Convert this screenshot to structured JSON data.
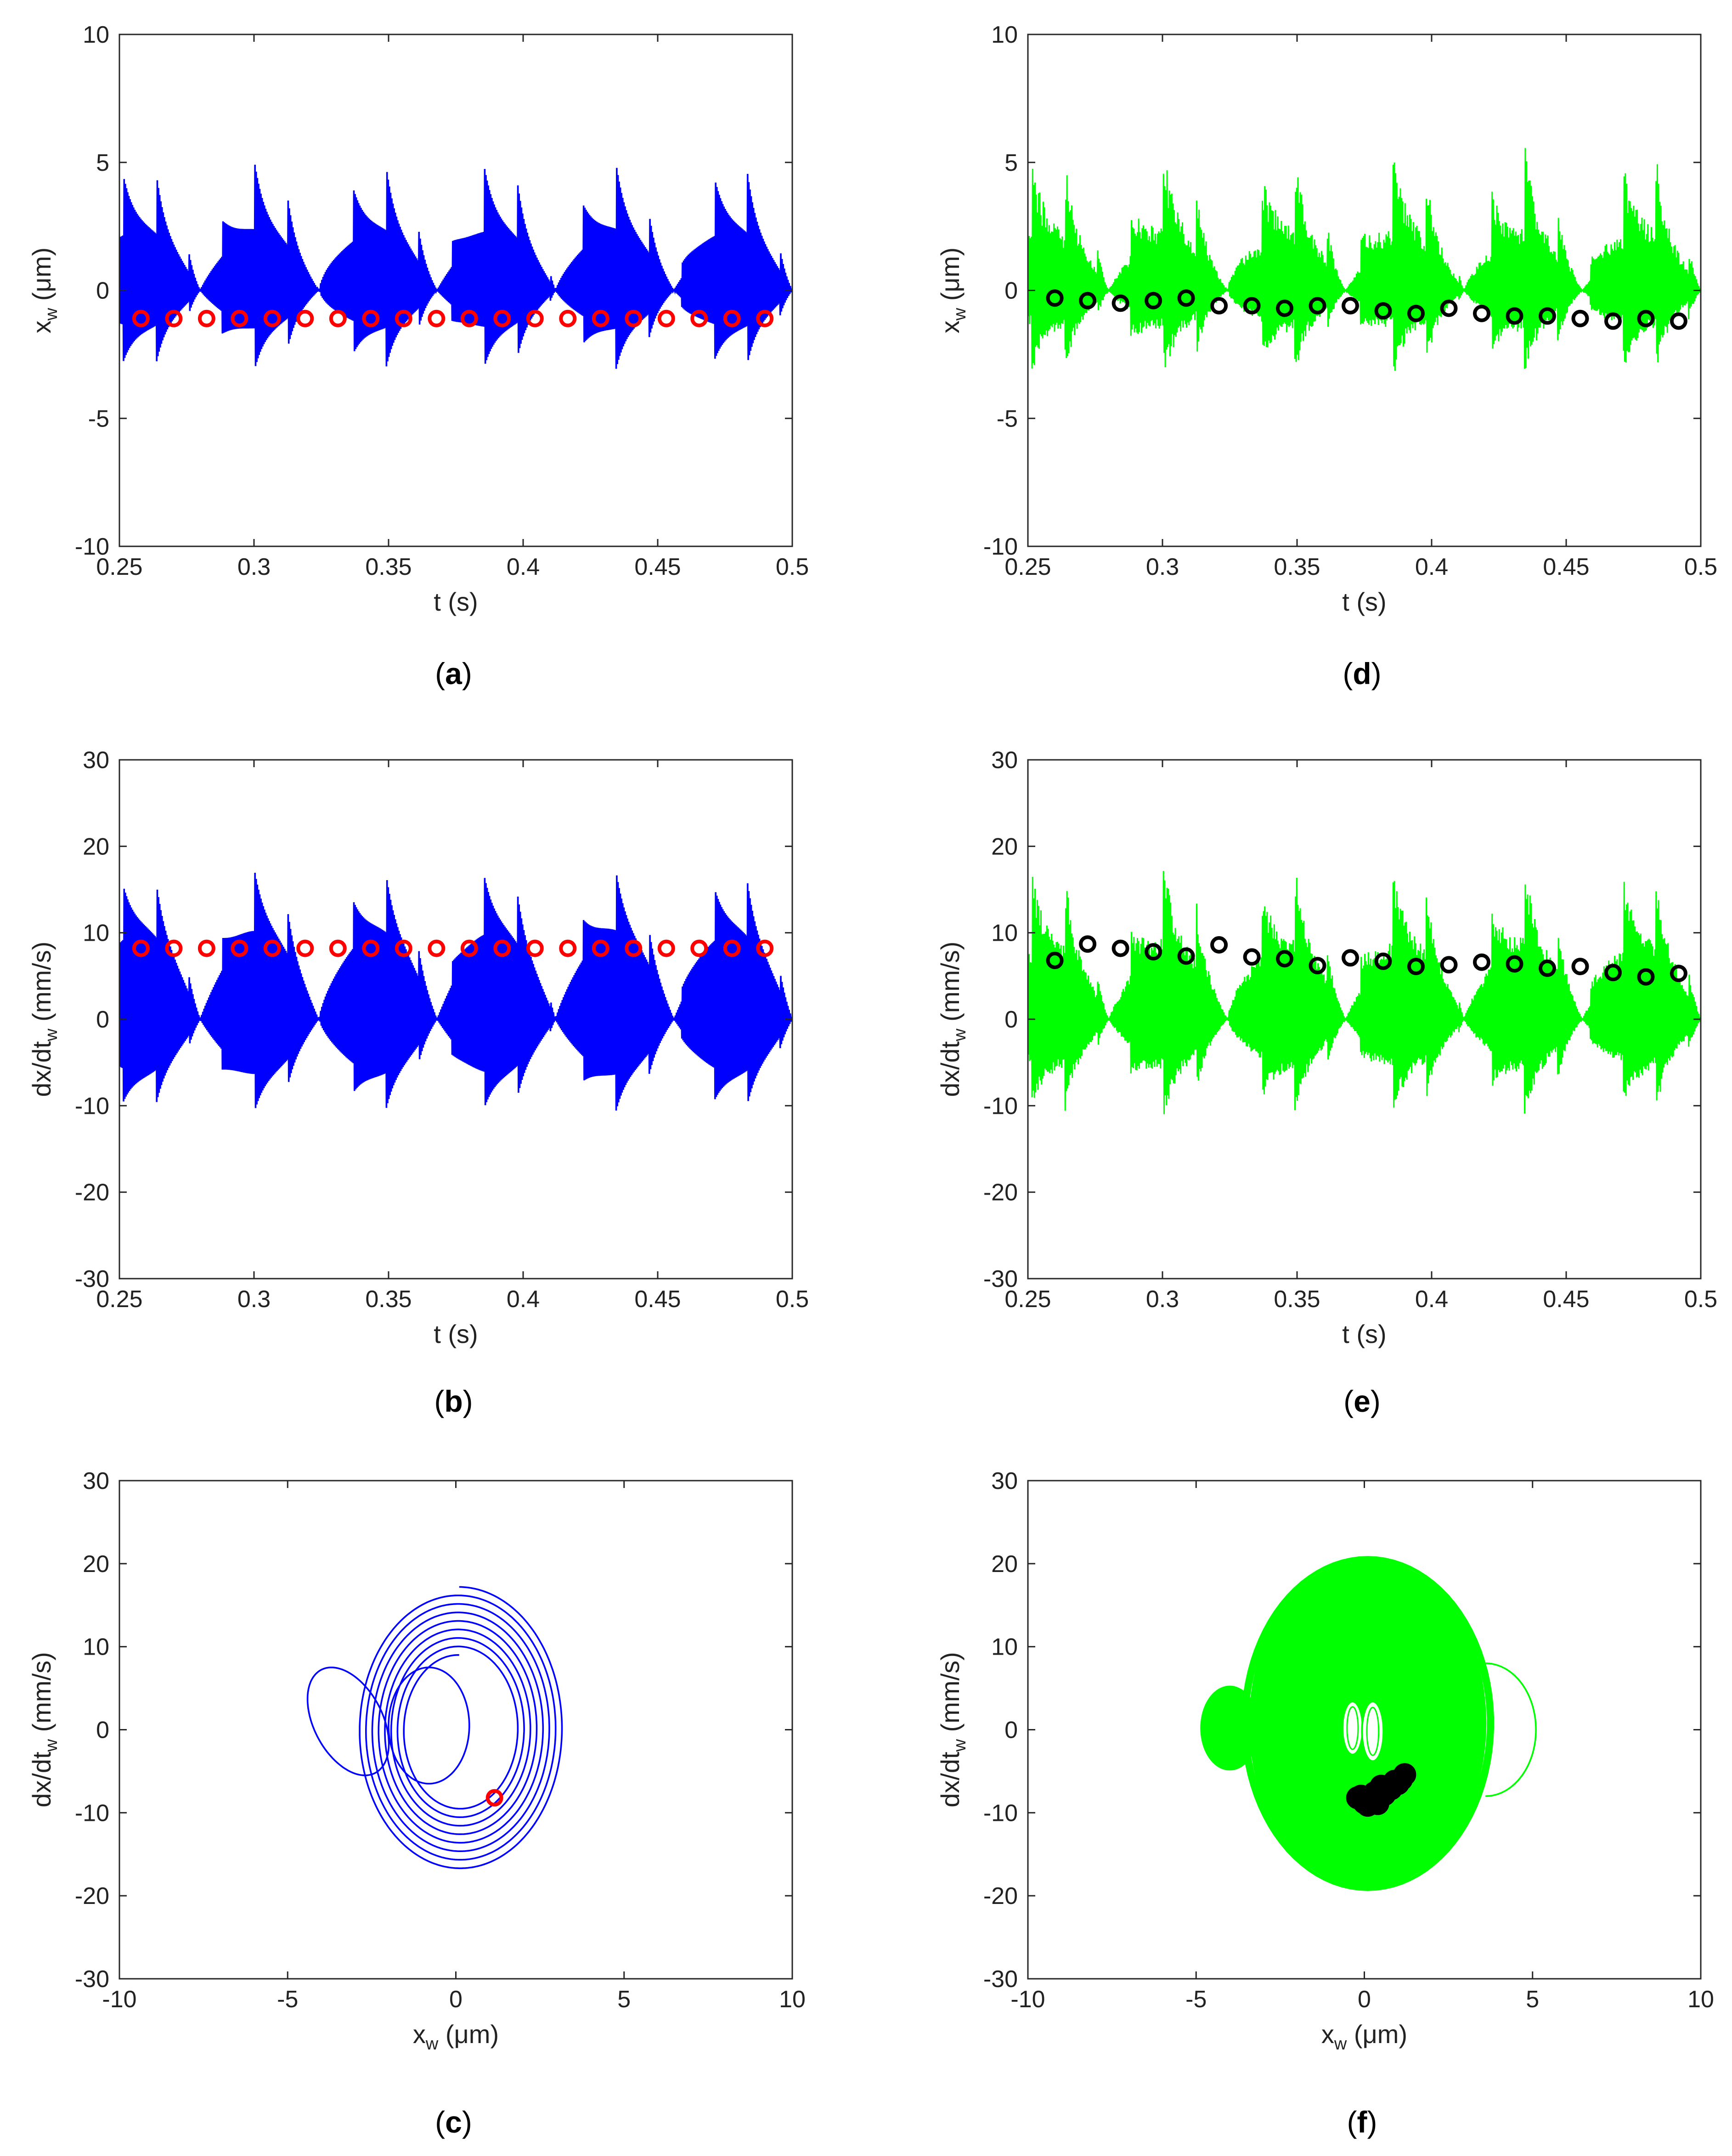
{
  "chart_data": [
    {
      "id": "a",
      "type": "line",
      "caption": "a",
      "xlabel": {
        "main": "t (s)",
        "sub": "",
        "unit": ""
      },
      "ylabel": {
        "main": "x",
        "sub": "w",
        "unit": " (μm)"
      },
      "xlim": [
        0.25,
        0.5
      ],
      "ylim": [
        -10,
        10
      ],
      "xticks": [
        0.25,
        0.3,
        0.35,
        0.4,
        0.45,
        0.5
      ],
      "yticks": [
        -10,
        -5,
        0,
        5,
        10
      ],
      "colors": {
        "line": "#0000ff",
        "marker": "#ff0000"
      },
      "signal": {
        "kind": "bursts",
        "period_s": 0.0122,
        "first_s": 0.2515,
        "amp_peak": 5.0,
        "amp_floor": 2.3,
        "offset": 0,
        "random": 0
      },
      "markers": {
        "x": [
          0.258,
          0.2702,
          0.2824,
          0.2946,
          0.3068,
          0.319,
          0.3312,
          0.3434,
          0.3556,
          0.3678,
          0.38,
          0.3922,
          0.4044,
          0.4166,
          0.4288,
          0.441,
          0.4532,
          0.4654,
          0.4776,
          0.4898
        ],
        "y": [
          -1.1,
          -1.1,
          -1.1,
          -1.1,
          -1.1,
          -1.1,
          -1.1,
          -1.1,
          -1.1,
          -1.1,
          -1.1,
          -1.1,
          -1.1,
          -1.1,
          -1.1,
          -1.1,
          -1.1,
          -1.1,
          -1.1,
          -1.1
        ]
      }
    },
    {
      "id": "b",
      "type": "line",
      "caption": "b",
      "xlabel": {
        "main": "t (s)",
        "sub": "",
        "unit": ""
      },
      "ylabel": {
        "main": "dx/dt",
        "sub": "w",
        "unit": " (mm/s)"
      },
      "xlim": [
        0.25,
        0.5
      ],
      "ylim": [
        -30,
        30
      ],
      "xticks": [
        0.25,
        0.3,
        0.35,
        0.4,
        0.45,
        0.5
      ],
      "yticks": [
        -30,
        -20,
        -10,
        0,
        10,
        20,
        30
      ],
      "colors": {
        "line": "#0000ff",
        "marker": "#ff0000"
      },
      "signal": {
        "kind": "bursts",
        "period_s": 0.0122,
        "first_s": 0.2515,
        "amp_peak": 17.2,
        "amp_floor": 10.0,
        "offset": 0,
        "random": 0
      },
      "markers": {
        "x": [
          0.258,
          0.2702,
          0.2824,
          0.2946,
          0.3068,
          0.319,
          0.3312,
          0.3434,
          0.3556,
          0.3678,
          0.38,
          0.3922,
          0.4044,
          0.4166,
          0.4288,
          0.441,
          0.4532,
          0.4654,
          0.4776,
          0.4898
        ],
        "y": [
          8.2,
          8.2,
          8.2,
          8.2,
          8.2,
          8.2,
          8.2,
          8.2,
          8.2,
          8.2,
          8.2,
          8.2,
          8.2,
          8.2,
          8.2,
          8.2,
          8.2,
          8.2,
          8.2,
          8.2
        ]
      }
    },
    {
      "id": "c",
      "type": "line",
      "caption": "c",
      "xlabel": {
        "main": "x",
        "sub": "w",
        "unit": " (μm)"
      },
      "ylabel": {
        "main": "dx/dt",
        "sub": "w",
        "unit": " (mm/s)"
      },
      "xlim": [
        -10,
        10
      ],
      "ylim": [
        -30,
        30
      ],
      "xticks": [
        -10,
        -5,
        0,
        5,
        10
      ],
      "yticks": [
        -30,
        -20,
        -10,
        0,
        10,
        20,
        30
      ],
      "colors": {
        "line": "#0000ff",
        "marker": "#ff0000"
      },
      "signal": {
        "kind": "orbit",
        "spiral_amp_start": 3.1,
        "spiral_amp_end": 1.6,
        "spiral_vel_start": 17.2,
        "spiral_vel_end": 9.0,
        "loops": 8,
        "lobe_cx": -3.2,
        "lobe_cy": 1.0,
        "lobe_rx": 1.1,
        "lobe_ry": 6.5,
        "inner_cx": -0.8,
        "inner_cy": 0.5,
        "inner_rx": 1.2,
        "inner_ry": 7.0
      },
      "markers": {
        "x": [
          1.15
        ],
        "y": [
          -8.2
        ]
      }
    },
    {
      "id": "d",
      "type": "line",
      "caption": "d",
      "xlabel": {
        "main": "t (s)",
        "sub": "",
        "unit": ""
      },
      "ylabel": {
        "main": "x",
        "sub": "w",
        "unit": " (μm)"
      },
      "xlim": [
        0.25,
        0.5
      ],
      "ylim": [
        -10,
        10
      ],
      "xticks": [
        0.25,
        0.3,
        0.35,
        0.4,
        0.45,
        0.5
      ],
      "yticks": [
        -10,
        -5,
        0,
        5,
        10
      ],
      "colors": {
        "line": "#00ff00",
        "marker": "#000000"
      },
      "signal": {
        "kind": "bursts",
        "period_s": 0.0122,
        "first_s": 0.2515,
        "amp_peak": 5.0,
        "amp_floor": 2.0,
        "offset": 0,
        "random": 0.35
      },
      "markers": {
        "x": [
          0.26,
          0.2722,
          0.2844,
          0.2966,
          0.3088,
          0.321,
          0.3332,
          0.3454,
          0.3576,
          0.3698,
          0.382,
          0.3942,
          0.4064,
          0.4186,
          0.4308,
          0.443,
          0.4552,
          0.4674,
          0.4796,
          0.4918
        ],
        "y": [
          -0.3,
          -0.4,
          -0.5,
          -0.4,
          -0.3,
          -0.6,
          -0.6,
          -0.7,
          -0.6,
          -0.6,
          -0.8,
          -0.9,
          -0.7,
          -0.9,
          -1.0,
          -1.0,
          -1.1,
          -1.2,
          -1.1,
          -1.2
        ]
      }
    },
    {
      "id": "e",
      "type": "line",
      "caption": "e",
      "xlabel": {
        "main": "t (s)",
        "sub": "",
        "unit": ""
      },
      "ylabel": {
        "main": "dx/dt",
        "sub": "w",
        "unit": " (mm/s)"
      },
      "xlim": [
        0.25,
        0.5
      ],
      "ylim": [
        -30,
        30
      ],
      "xticks": [
        0.25,
        0.3,
        0.35,
        0.4,
        0.45,
        0.5
      ],
      "yticks": [
        -30,
        -20,
        -10,
        0,
        10,
        20,
        30
      ],
      "colors": {
        "line": "#00ff00",
        "marker": "#000000"
      },
      "signal": {
        "kind": "bursts",
        "period_s": 0.0122,
        "first_s": 0.2515,
        "amp_peak": 17.0,
        "amp_floor": 8.0,
        "offset": 0,
        "random": 0.25
      },
      "markers": {
        "x": [
          0.26,
          0.2722,
          0.2844,
          0.2966,
          0.3088,
          0.321,
          0.3332,
          0.3454,
          0.3576,
          0.3698,
          0.382,
          0.3942,
          0.4064,
          0.4186,
          0.4308,
          0.443,
          0.4552,
          0.4674,
          0.4796,
          0.4918
        ],
        "y": [
          6.8,
          8.7,
          8.2,
          7.8,
          7.3,
          8.6,
          7.2,
          7.0,
          6.2,
          7.1,
          6.7,
          6.1,
          6.3,
          6.6,
          6.4,
          5.9,
          6.1,
          5.4,
          4.9,
          5.3
        ]
      }
    },
    {
      "id": "f",
      "type": "line",
      "caption": "f",
      "xlabel": {
        "main": "x",
        "sub": "w",
        "unit": " (μm)"
      },
      "ylabel": {
        "main": "dx/dt",
        "sub": "w",
        "unit": " (mm/s)"
      },
      "xlim": [
        -10,
        10
      ],
      "ylim": [
        -30,
        30
      ],
      "xticks": [
        -10,
        -5,
        0,
        5,
        10
      ],
      "yticks": [
        -30,
        -20,
        -10,
        0,
        10,
        20,
        30
      ],
      "colors": {
        "line": "#00ff00",
        "marker": "#000000"
      },
      "signal": {
        "kind": "chaotic-orbit",
        "amp_x": 3.5,
        "vel_max": 20.5,
        "vel_min": -19.0,
        "center_x": 0.1,
        "center_y": 0.8,
        "lobe_left_x": -4.7,
        "lobe_right_x": 5.1
      },
      "markers": {
        "x": [
          -0.2,
          0.0,
          0.2,
          0.4,
          0.6,
          0.8,
          1.0,
          1.2,
          0.9,
          0.5,
          0.3,
          -0.1,
          0.1,
          0.7,
          1.1
        ],
        "y": [
          -8.2,
          -8.8,
          -8.5,
          -8.9,
          -7.8,
          -7.1,
          -6.5,
          -5.4,
          -6.2,
          -6.8,
          -7.6,
          -8.0,
          -9.1,
          -7.3,
          -6.0
        ]
      }
    }
  ]
}
